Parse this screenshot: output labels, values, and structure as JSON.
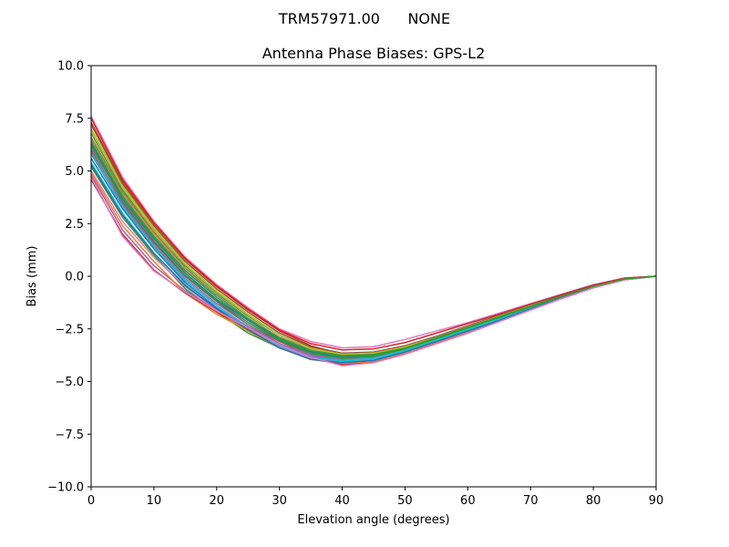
{
  "figure": {
    "suptitle": "TRM57971.00      NONE"
  },
  "chart_data": {
    "type": "line",
    "title": "Antenna Phase Biases: GPS-L2",
    "xlabel": "Elevation angle (degrees)",
    "ylabel": "Bias (mm)",
    "xlim": [
      0,
      90
    ],
    "ylim": [
      -10,
      10
    ],
    "xticks": [
      0,
      10,
      20,
      30,
      40,
      50,
      60,
      70,
      80,
      90
    ],
    "xtick_labels": [
      "0",
      "10",
      "20",
      "30",
      "40",
      "50",
      "60",
      "70",
      "80",
      "90"
    ],
    "yticks": [
      -10,
      -7.5,
      -5,
      -2.5,
      0,
      2.5,
      5,
      7.5,
      10
    ],
    "ytick_labels": [
      "−10.0",
      "−7.5",
      "−5.0",
      "−2.5",
      "0.0",
      "2.5",
      "5.0",
      "7.5",
      "10.0"
    ],
    "grid": false,
    "legend": "none",
    "x": [
      0,
      5,
      10,
      15,
      20,
      25,
      30,
      35,
      40,
      45,
      50,
      55,
      60,
      65,
      70,
      75,
      80,
      85,
      90
    ],
    "series": [
      {
        "color": "#1f77b4",
        "values": [
          5.6,
          3.2,
          1.3,
          -0.3,
          -1.5,
          -2.5,
          -3.3,
          -3.8,
          -4.0,
          -3.9,
          -3.5,
          -3.0,
          -2.5,
          -2.0,
          -1.5,
          -1.0,
          -0.5,
          -0.15,
          0.0
        ]
      },
      {
        "color": "#ff7f0e",
        "values": [
          6.5,
          3.9,
          2.0,
          0.3,
          -0.9,
          -2.0,
          -2.9,
          -3.5,
          -3.8,
          -3.7,
          -3.4,
          -2.9,
          -2.4,
          -1.9,
          -1.4,
          -0.9,
          -0.45,
          -0.12,
          0.0
        ]
      },
      {
        "color": "#2ca02c",
        "values": [
          5.2,
          2.8,
          1.0,
          -0.6,
          -1.7,
          -2.7,
          -3.4,
          -3.9,
          -4.1,
          -4.0,
          -3.6,
          -3.1,
          -2.6,
          -2.1,
          -1.6,
          -1.05,
          -0.55,
          -0.16,
          0.0
        ]
      },
      {
        "color": "#d62728",
        "values": [
          7.3,
          4.5,
          2.5,
          0.8,
          -0.5,
          -1.6,
          -2.6,
          -3.3,
          -3.7,
          -3.7,
          -3.4,
          -2.9,
          -2.4,
          -1.9,
          -1.4,
          -0.9,
          -0.45,
          -0.1,
          0.0
        ]
      },
      {
        "color": "#9467bd",
        "values": [
          4.8,
          2.2,
          0.5,
          -0.7,
          -1.6,
          -2.4,
          -3.2,
          -3.8,
          -4.1,
          -4.0,
          -3.6,
          -3.1,
          -2.6,
          -2.1,
          -1.6,
          -1.05,
          -0.55,
          -0.16,
          0.0
        ]
      },
      {
        "color": "#8c564b",
        "values": [
          6.0,
          3.5,
          1.6,
          0.0,
          -1.2,
          -2.3,
          -3.1,
          -3.7,
          -3.9,
          -3.8,
          -3.5,
          -3.0,
          -2.5,
          -2.0,
          -1.5,
          -1.0,
          -0.5,
          -0.15,
          0.0
        ]
      },
      {
        "color": "#e377c2",
        "values": [
          7.6,
          4.7,
          2.6,
          0.9,
          -0.4,
          -1.5,
          -2.5,
          -3.1,
          -3.4,
          -3.35,
          -3.0,
          -2.6,
          -2.2,
          -1.75,
          -1.3,
          -0.85,
          -0.4,
          -0.08,
          0.0
        ]
      },
      {
        "color": "#7f7f7f",
        "values": [
          5.9,
          3.3,
          1.4,
          -0.2,
          -1.4,
          -2.4,
          -3.2,
          -3.7,
          -3.95,
          -3.85,
          -3.5,
          -3.0,
          -2.5,
          -2.0,
          -1.5,
          -1.0,
          -0.5,
          -0.15,
          0.0
        ]
      },
      {
        "color": "#bcbd22",
        "values": [
          7.0,
          4.3,
          2.3,
          0.6,
          -0.7,
          -1.8,
          -2.8,
          -3.4,
          -3.7,
          -3.65,
          -3.35,
          -2.9,
          -2.4,
          -1.9,
          -1.4,
          -0.9,
          -0.45,
          -0.12,
          0.0
        ]
      },
      {
        "color": "#17becf",
        "values": [
          5.4,
          3.0,
          1.1,
          -0.4,
          -1.6,
          -2.6,
          -3.4,
          -3.9,
          -4.05,
          -3.95,
          -3.55,
          -3.05,
          -2.55,
          -2.05,
          -1.55,
          -1.0,
          -0.5,
          -0.15,
          0.0
        ]
      },
      {
        "color": "#1f77b4",
        "values": [
          6.3,
          3.7,
          1.8,
          0.15,
          -1.1,
          -2.1,
          -3.0,
          -3.6,
          -3.85,
          -3.75,
          -3.45,
          -2.95,
          -2.45,
          -1.95,
          -1.45,
          -0.95,
          -0.48,
          -0.13,
          0.0
        ]
      },
      {
        "color": "#ff7f0e",
        "values": [
          4.9,
          2.4,
          0.7,
          -0.8,
          -1.8,
          -2.6,
          -3.4,
          -3.95,
          -4.15,
          -4.05,
          -3.65,
          -3.15,
          -2.65,
          -2.15,
          -1.6,
          -1.05,
          -0.55,
          -0.17,
          0.0
        ]
      },
      {
        "color": "#2ca02c",
        "values": [
          6.8,
          4.1,
          2.2,
          0.5,
          -0.8,
          -1.9,
          -2.8,
          -3.45,
          -3.75,
          -3.7,
          -3.4,
          -2.9,
          -2.4,
          -1.9,
          -1.4,
          -0.9,
          -0.45,
          -0.12,
          0.0
        ]
      },
      {
        "color": "#d62728",
        "values": [
          4.6,
          2.0,
          0.3,
          -0.8,
          -1.7,
          -2.5,
          -3.3,
          -3.9,
          -4.2,
          -4.1,
          -3.7,
          -3.2,
          -2.7,
          -2.15,
          -1.6,
          -1.05,
          -0.55,
          -0.17,
          0.0
        ]
      },
      {
        "color": "#9467bd",
        "values": [
          6.1,
          3.4,
          1.5,
          -0.1,
          -1.3,
          -2.3,
          -3.2,
          -3.75,
          -3.95,
          -3.85,
          -3.5,
          -3.0,
          -2.5,
          -2.0,
          -1.5,
          -1.0,
          -0.5,
          -0.15,
          0.0
        ]
      },
      {
        "color": "#8c564b",
        "values": [
          7.2,
          4.4,
          2.4,
          0.7,
          -0.6,
          -1.7,
          -2.7,
          -3.35,
          -3.65,
          -3.6,
          -3.3,
          -2.85,
          -2.35,
          -1.85,
          -1.35,
          -0.88,
          -0.43,
          -0.1,
          0.0
        ]
      },
      {
        "color": "#e377c2",
        "values": [
          5.0,
          2.6,
          0.9,
          -0.5,
          -1.6,
          -2.55,
          -3.35,
          -3.9,
          -4.1,
          -4.0,
          -3.6,
          -3.1,
          -2.6,
          -2.1,
          -1.6,
          -1.05,
          -0.55,
          -0.16,
          0.0
        ]
      },
      {
        "color": "#7f7f7f",
        "values": [
          6.6,
          4.0,
          2.1,
          0.4,
          -0.9,
          -2.0,
          -2.9,
          -3.5,
          -3.8,
          -3.7,
          -3.4,
          -2.9,
          -2.4,
          -1.9,
          -1.4,
          -0.9,
          -0.45,
          -0.12,
          0.0
        ]
      },
      {
        "color": "#bcbd22",
        "values": [
          6.9,
          4.2,
          2.2,
          0.55,
          -0.75,
          -1.85,
          -2.8,
          -3.45,
          -3.7,
          -3.65,
          -3.35,
          -2.9,
          -2.4,
          -1.9,
          -1.4,
          -0.9,
          -0.45,
          -0.12,
          0.0
        ]
      },
      {
        "color": "#17becf",
        "values": [
          5.8,
          3.3,
          1.4,
          -0.2,
          -1.4,
          -2.45,
          -3.3,
          -3.85,
          -4.0,
          -3.9,
          -3.5,
          -3.0,
          -2.5,
          -2.0,
          -1.5,
          -1.0,
          -0.5,
          -0.15,
          0.0
        ]
      },
      {
        "color": "#1f77b4",
        "values": [
          5.3,
          2.9,
          1.1,
          -0.45,
          -1.55,
          -2.55,
          -3.4,
          -3.95,
          -4.1,
          -4.0,
          -3.6,
          -3.1,
          -2.6,
          -2.1,
          -1.55,
          -1.0,
          -0.5,
          -0.16,
          0.0
        ]
      },
      {
        "color": "#2ca02c",
        "values": [
          6.4,
          3.8,
          1.9,
          0.25,
          -1.0,
          -2.05,
          -2.95,
          -3.55,
          -3.8,
          -3.72,
          -3.42,
          -2.92,
          -2.42,
          -1.92,
          -1.42,
          -0.92,
          -0.46,
          -0.12,
          0.0
        ]
      },
      {
        "color": "#d62728",
        "values": [
          7.5,
          4.6,
          2.55,
          0.85,
          -0.45,
          -1.55,
          -2.55,
          -3.2,
          -3.5,
          -3.45,
          -3.15,
          -2.7,
          -2.25,
          -1.8,
          -1.33,
          -0.87,
          -0.42,
          -0.09,
          0.0
        ]
      },
      {
        "color": "#e377c2",
        "values": [
          4.7,
          1.9,
          0.25,
          -0.75,
          -1.65,
          -2.45,
          -3.25,
          -3.85,
          -4.25,
          -4.1,
          -3.7,
          -3.2,
          -2.7,
          -2.15,
          -1.6,
          -1.05,
          -0.55,
          -0.17,
          0.0
        ]
      },
      {
        "color": "#2ca02c",
        "values": [
          6.2,
          3.6,
          1.7,
          0.05,
          -1.15,
          -2.2,
          -3.05,
          -3.65,
          -3.9,
          -3.8,
          -3.45,
          -2.95,
          -2.45,
          -1.95,
          -1.45,
          -0.95,
          -0.48,
          -0.13,
          0.0
        ]
      }
    ]
  }
}
